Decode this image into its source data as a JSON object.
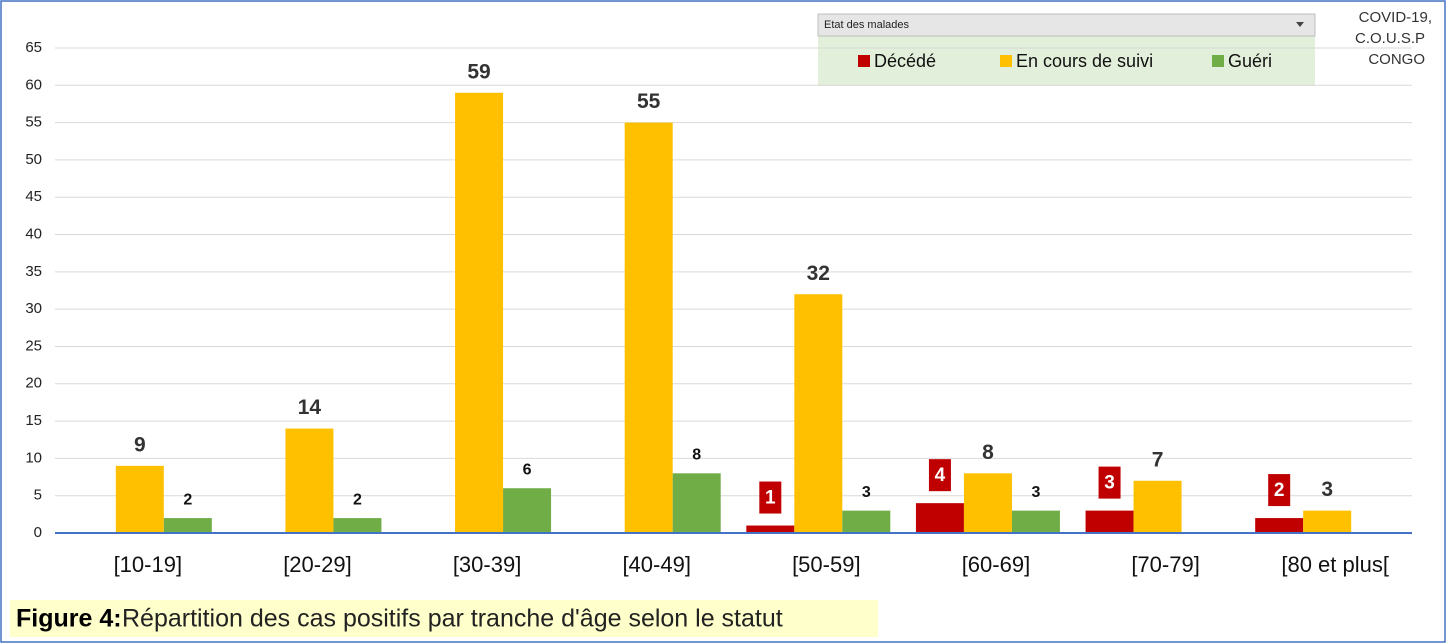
{
  "chart_data": {
    "type": "bar",
    "legend_title": "Etat des malades",
    "annotations": [
      "COVID-19,",
      "C.O.U.S.P",
      "CONGO"
    ],
    "figure_label": "Figure 4:",
    "caption": "Répartition des cas positifs par tranche d'âge selon le statut",
    "categories": [
      "[10-19]",
      "[20-29]",
      "[30-39]",
      "[40-49]",
      "[50-59]",
      "[60-69]",
      "[70-79]",
      "[80 et plus["
    ],
    "series": [
      {
        "name": "Décédé",
        "color": "#c00000",
        "values": [
          null,
          null,
          null,
          null,
          1,
          4,
          3,
          2
        ]
      },
      {
        "name": "En cours de suivi",
        "color": "#ffc000",
        "values": [
          9,
          14,
          59,
          55,
          32,
          8,
          7,
          3
        ]
      },
      {
        "name": "Guéri",
        "color": "#70ad47",
        "values": [
          2,
          2,
          6,
          8,
          3,
          3,
          null,
          null
        ]
      }
    ],
    "ylim": [
      0,
      65
    ],
    "yticks": [
      0,
      5,
      10,
      15,
      20,
      25,
      30,
      35,
      40,
      45,
      50,
      55,
      60,
      65
    ],
    "grid": true,
    "legend_position": "top-right"
  }
}
